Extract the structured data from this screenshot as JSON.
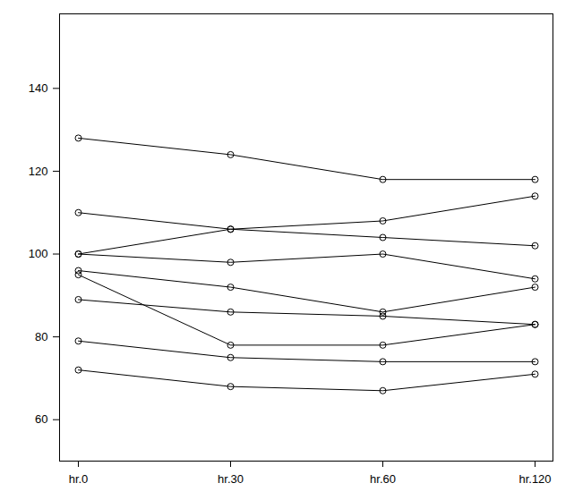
{
  "chart_data": {
    "type": "line",
    "categories": [
      "hr.0",
      "hr.30",
      "hr.60",
      "hr.120"
    ],
    "ylim": [
      50,
      158
    ],
    "yticks": [
      60,
      80,
      100,
      120,
      140
    ],
    "color": "#000000",
    "marker": "circle",
    "line_style": "solid",
    "series": [
      {
        "values": [
          128,
          124,
          118,
          118
        ]
      },
      {
        "values": [
          110,
          106,
          104,
          102
        ]
      },
      {
        "values": [
          100,
          106,
          108,
          114
        ]
      },
      {
        "values": [
          100,
          98,
          100,
          94
        ]
      },
      {
        "values": [
          96,
          92,
          86,
          92
        ]
      },
      {
        "values": [
          95,
          78,
          78,
          83
        ]
      },
      {
        "values": [
          89,
          86,
          85,
          83
        ]
      },
      {
        "values": [
          79,
          75,
          74,
          74
        ]
      },
      {
        "values": [
          72,
          68,
          67,
          71
        ]
      }
    ]
  }
}
